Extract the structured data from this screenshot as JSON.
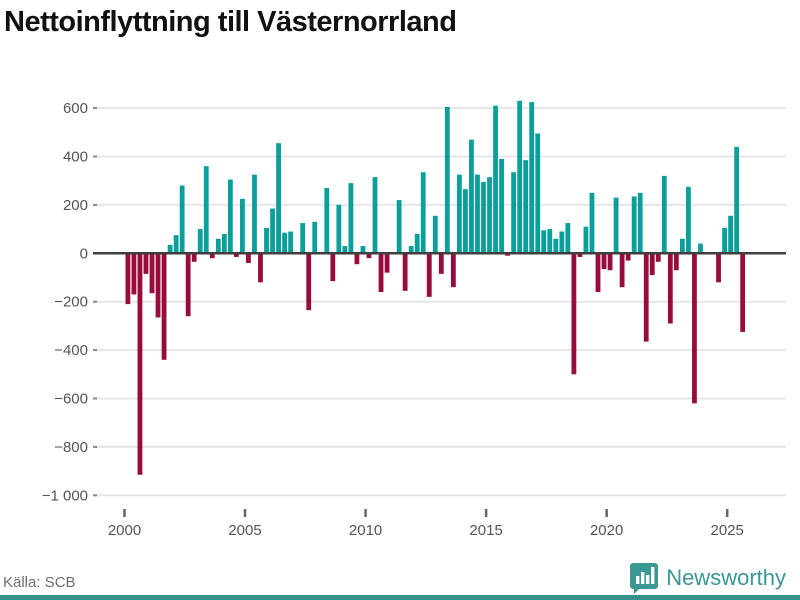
{
  "title": "Nettoinflyttning till Västernorrland",
  "source": "Källa: SCB",
  "branding": {
    "name": "Newsworthy",
    "icon": "bar-chart-bubble-icon"
  },
  "colors": {
    "positive_bar": "#0a9f9b",
    "negative_bar": "#970b3d",
    "grid": "#e6e6e6",
    "zero_line": "#3f3f3f",
    "tick": "#8a8a8a",
    "axis_text": "#555555",
    "title_text": "#111111",
    "source_text": "#6e6e6e",
    "brand_teal": "#3a9793",
    "footer_strip": "#36918d"
  },
  "chart_data": {
    "type": "bar",
    "title": "Nettoinflyttning till Västernorrland",
    "xlabel": "",
    "ylabel": "",
    "period": "quarterly",
    "start": "2000Q1",
    "end": "2025Q3",
    "ylim": [
      -1000,
      600
    ],
    "ytick_step": 200,
    "ytick_labels": [
      "600",
      "400",
      "200",
      "0",
      "−200",
      "−400",
      "−600",
      "−800",
      "−1 000"
    ],
    "xtick_labels": [
      "2000",
      "2005",
      "2010",
      "2015",
      "2020",
      "2025"
    ],
    "grid": true,
    "legend": false,
    "values": [
      -210,
      -170,
      -915,
      -85,
      -165,
      -265,
      -440,
      35,
      75,
      280,
      -260,
      -35,
      100,
      360,
      -20,
      60,
      80,
      305,
      -15,
      225,
      -40,
      325,
      -120,
      105,
      185,
      455,
      85,
      90,
      0,
      125,
      -235,
      130,
      0,
      270,
      -115,
      200,
      30,
      290,
      -45,
      30,
      -20,
      315,
      -160,
      -80,
      0,
      220,
      -155,
      30,
      80,
      335,
      -180,
      155,
      -85,
      605,
      -140,
      325,
      265,
      470,
      325,
      295,
      315,
      610,
      390,
      -10,
      335,
      630,
      385,
      625,
      495,
      95,
      100,
      60,
      90,
      125,
      -500,
      -15,
      110,
      250,
      -160,
      -65,
      -70,
      230,
      -140,
      -30,
      235,
      250,
      -365,
      -90,
      -35,
      320,
      -290,
      -70,
      60,
      275,
      -620,
      40,
      0,
      0,
      -120,
      105,
      155,
      440,
      -325
    ]
  }
}
